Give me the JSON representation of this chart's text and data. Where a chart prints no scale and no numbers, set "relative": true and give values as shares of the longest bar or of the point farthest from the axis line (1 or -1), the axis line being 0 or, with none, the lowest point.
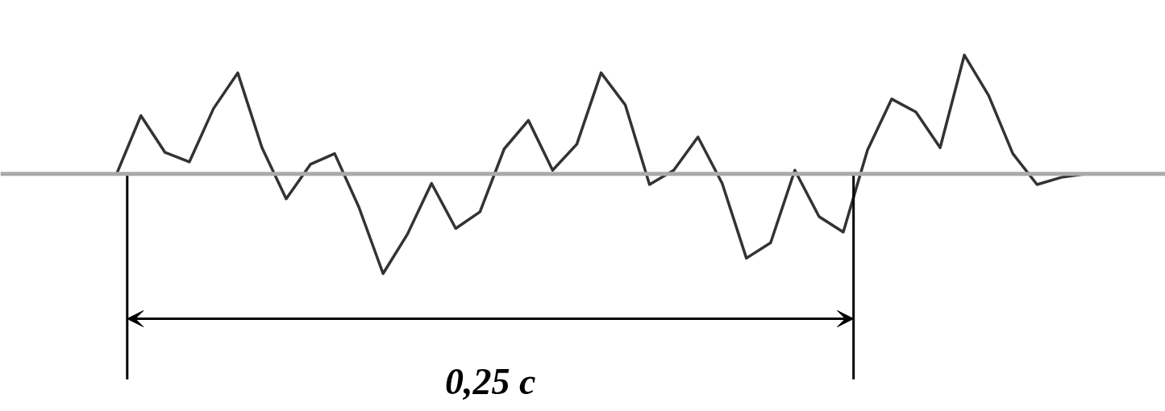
{
  "chart_data": {
    "type": "line",
    "relative": true,
    "categories": [
      null,
      null,
      null,
      null,
      null,
      null,
      null,
      null,
      null,
      null,
      null,
      null,
      null,
      null,
      null,
      null,
      null,
      null,
      null,
      null,
      null,
      null,
      null,
      null,
      null,
      null,
      null,
      null,
      null,
      null,
      null,
      null,
      null,
      null,
      null,
      null,
      null,
      null,
      null,
      null,
      null,
      null,
      null
    ],
    "series": [
      {
        "color": "#333333",
        "values": [
          0,
          0,
          0,
          0.49,
          0.18,
          0.1,
          0.55,
          0.85,
          0.22,
          -0.21,
          0.08,
          0.17,
          -0.28,
          -0.84,
          -0.51,
          -0.08,
          -0.46,
          -0.32,
          0.21,
          0.45,
          0.03,
          0.25,
          0.85,
          0.58,
          -0.09,
          0.03,
          0.31,
          -0.08,
          -0.71,
          -0.58,
          0.03,
          -0.36,
          -0.49,
          0.2,
          0.63,
          0.52,
          0.22,
          1,
          0.66,
          0.17,
          -0.09,
          -0.03,
          0
        ]
      }
    ],
    "annotations": [
      "0,25 с"
    ],
    "line_style": "solid",
    "marker": "none"
  }
}
